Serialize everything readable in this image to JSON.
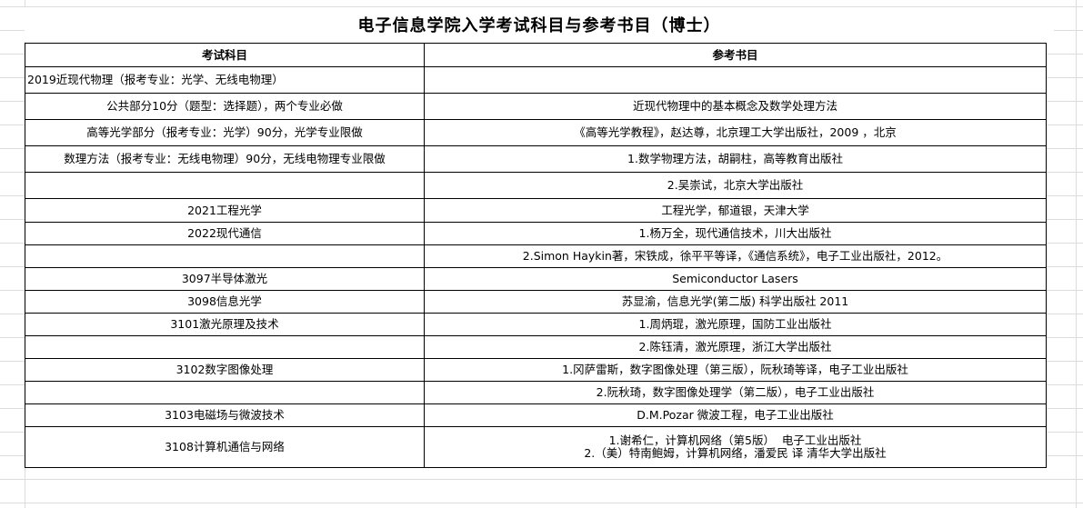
{
  "title": "电子信息学院入学考试科目与参考书目（博士）",
  "headers": {
    "subject": "考试科目",
    "books": "参考书目"
  },
  "rows": [
    {
      "subject": "2019近现代物理（报考专业：光学、无线电物理）",
      "books": ""
    },
    {
      "subject": "公共部分10分（题型：选择题），两个专业必做",
      "books": "近现代物理中的基本概念及数学处理方法"
    },
    {
      "subject": "高等光学部分（报考专业：光学）90分，光学专业限做",
      "books": "《高等光学教程》，赵达尊，北京理工大学出版社，2009 ，北京"
    },
    {
      "subject": "数理方法（报考专业：无线电物理）90分，无线电物理专业限做",
      "books": "1.数学物理方法，胡嗣柱，高等教育出版社"
    },
    {
      "subject": "",
      "books": "2.吴崇试，北京大学出版社"
    },
    {
      "subject": "2021工程光学",
      "books": "工程光学，郁道银，天津大学"
    },
    {
      "subject": "2022现代通信",
      "books": "1.杨万全，现代通信技术，川大出版社"
    },
    {
      "subject": "",
      "books": "2.Simon Haykin著，宋铁成，徐平平等译，《通信系统》，电子工业出版社，2012。"
    },
    {
      "subject": "3097半导体激光",
      "books": "Semiconductor Lasers"
    },
    {
      "subject": "3098信息光学",
      "books": "苏显渝，信息光学(第二版) 科学出版社 2011"
    },
    {
      "subject": "3101激光原理及技术",
      "books": "1.周炳琨，激光原理，国防工业出版社"
    },
    {
      "subject": "",
      "books": "2.陈钰清，激光原理，浙江大学出版社"
    },
    {
      "subject": "3102数字图像处理",
      "books": "1.冈萨雷斯，数字图像处理（第三版），阮秋琦等译，电子工业出版社"
    },
    {
      "subject": "",
      "books": "2.阮秋琦，数字图像处理学（第二版），电子工业出版社"
    },
    {
      "subject": "3103电磁场与微波技术",
      "books": "D.M.Pozar 微波工程，电子工业出版社"
    },
    {
      "subject": "3108计算机通信与网络",
      "books": "1.谢希仁，计算机网络（第5版）  电子工业出版社",
      "books2": "2.（美）特南鲍姆，计算机网络，潘爱民 译 清华大学出版社"
    }
  ]
}
